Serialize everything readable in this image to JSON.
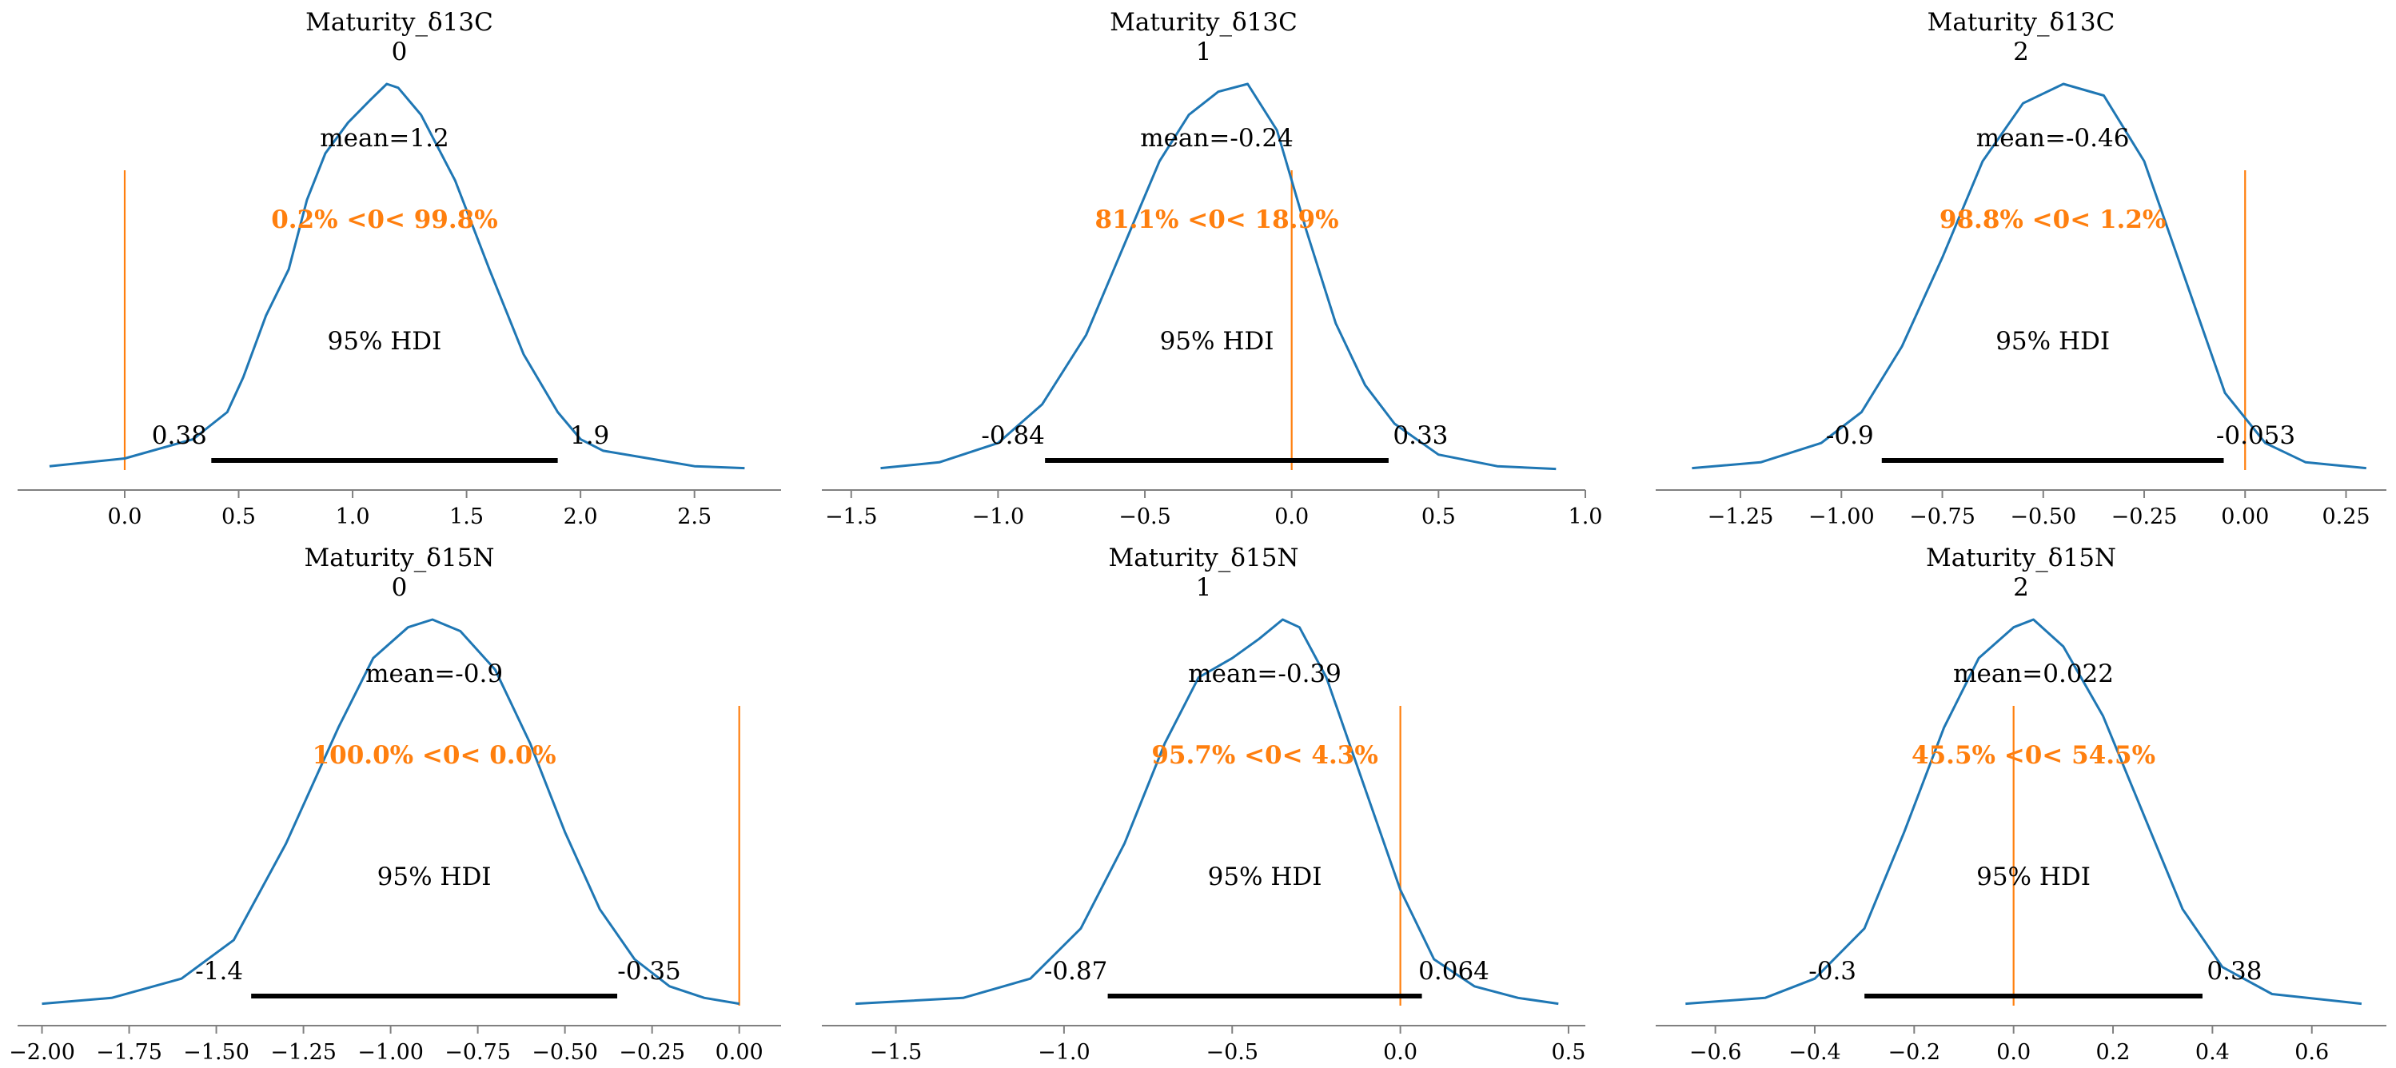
{
  "colors": {
    "kde": "#1f77b4",
    "ref": "#ff7f0e",
    "hdi": "#000000",
    "axis": "#808080"
  },
  "chart_data": [
    {
      "type": "area",
      "title": [
        "Maturity_δ13C",
        "0"
      ],
      "mean_label": "mean=1.2",
      "ref_val_label": "0.2% <0< 99.8%",
      "hdi_label": "95% HDI",
      "hdi": {
        "low": 0.38,
        "high": 1.9,
        "low_label": "0.38",
        "high_label": "1.9"
      },
      "ref_val": 0.0,
      "xlim": [
        -0.47,
        2.88
      ],
      "xticks": [
        0.0,
        0.5,
        1.0,
        1.5,
        2.0,
        2.5
      ],
      "xticklabels": [
        "0.0",
        "0.5",
        "1.0",
        "1.5",
        "2.0",
        "2.5"
      ],
      "kde": {
        "x": [
          -0.33,
          0.0,
          0.3,
          0.45,
          0.52,
          0.62,
          0.72,
          0.8,
          0.88,
          0.98,
          1.08,
          1.15,
          1.2,
          1.3,
          1.45,
          1.6,
          1.75,
          1.9,
          2.0,
          2.1,
          2.3,
          2.5,
          2.72
        ],
        "y": [
          0.01,
          0.03,
          0.08,
          0.15,
          0.24,
          0.4,
          0.52,
          0.7,
          0.82,
          0.9,
          0.96,
          1.0,
          0.99,
          0.92,
          0.75,
          0.52,
          0.3,
          0.15,
          0.08,
          0.05,
          0.03,
          0.01,
          0.005
        ]
      }
    },
    {
      "type": "area",
      "title": [
        "Maturity_δ13C",
        "1"
      ],
      "mean_label": "mean=-0.24",
      "ref_val_label": "81.1% <0< 18.9%",
      "hdi_label": "95% HDI",
      "hdi": {
        "low": -0.84,
        "high": 0.33,
        "low_label": "-0.84",
        "high_label": "0.33"
      },
      "ref_val": 0.0,
      "xlim": [
        -1.6,
        1.0
      ],
      "xticks": [
        -1.5,
        -1.0,
        -0.5,
        0.0,
        0.5,
        1.0
      ],
      "xticklabels": [
        "−1.5",
        "−1.0",
        "−0.5",
        "0.0",
        "0.5",
        "1.0"
      ],
      "kde": {
        "x": [
          -1.4,
          -1.2,
          -1.0,
          -0.85,
          -0.7,
          -0.55,
          -0.45,
          -0.35,
          -0.25,
          -0.15,
          -0.05,
          0.05,
          0.15,
          0.25,
          0.35,
          0.5,
          0.7,
          0.9
        ],
        "y": [
          0.005,
          0.02,
          0.07,
          0.17,
          0.35,
          0.62,
          0.8,
          0.92,
          0.98,
          1.0,
          0.88,
          0.62,
          0.38,
          0.22,
          0.12,
          0.04,
          0.01,
          0.003
        ]
      }
    },
    {
      "type": "area",
      "title": [
        "Maturity_δ13C",
        "2"
      ],
      "mean_label": "mean=-0.46",
      "ref_val_label": "98.8% <0< 1.2%",
      "hdi_label": "95% HDI",
      "hdi": {
        "low": -0.9,
        "high": -0.053,
        "low_label": "-0.9",
        "high_label": "-0.053"
      },
      "ref_val": 0.0,
      "xlim": [
        -1.46,
        0.35
      ],
      "xticks": [
        -1.25,
        -1.0,
        -0.75,
        -0.5,
        -0.25,
        0.0,
        0.25
      ],
      "xticklabels": [
        "−1.25",
        "−1.00",
        "−0.75",
        "−0.50",
        "−0.25",
        "0.00",
        "0.25"
      ],
      "kde": {
        "x": [
          -1.37,
          -1.2,
          -1.05,
          -0.95,
          -0.85,
          -0.75,
          -0.65,
          -0.55,
          -0.45,
          -0.35,
          -0.25,
          -0.15,
          -0.05,
          0.05,
          0.15,
          0.3
        ],
        "y": [
          0.005,
          0.02,
          0.07,
          0.15,
          0.32,
          0.55,
          0.8,
          0.95,
          1.0,
          0.97,
          0.8,
          0.5,
          0.2,
          0.07,
          0.02,
          0.005
        ]
      }
    },
    {
      "type": "area",
      "title": [
        "Maturity_δ15N",
        "0"
      ],
      "mean_label": "mean=-0.9",
      "ref_val_label": "100.0% <0< 0.0%",
      "hdi_label": "95% HDI",
      "hdi": {
        "low": -1.4,
        "high": -0.35,
        "low_label": "-1.4",
        "high_label": "-0.35"
      },
      "ref_val": 0.0,
      "xlim": [
        -2.07,
        0.12
      ],
      "xticks": [
        -2.0,
        -1.75,
        -1.5,
        -1.25,
        -1.0,
        -0.75,
        -0.5,
        -0.25,
        0.0
      ],
      "xticklabels": [
        "−2.00",
        "−1.75",
        "−1.50",
        "−1.25",
        "−1.00",
        "−0.75",
        "−0.50",
        "−0.25",
        "0.00"
      ],
      "kde": {
        "x": [
          -2.0,
          -1.8,
          -1.6,
          -1.45,
          -1.3,
          -1.15,
          -1.05,
          -0.95,
          -0.88,
          -0.8,
          -0.7,
          -0.6,
          -0.5,
          -0.4,
          -0.3,
          -0.2,
          -0.1,
          0.0
        ],
        "y": [
          0.005,
          0.02,
          0.07,
          0.17,
          0.42,
          0.72,
          0.9,
          0.98,
          1.0,
          0.97,
          0.87,
          0.68,
          0.45,
          0.25,
          0.12,
          0.05,
          0.02,
          0.005
        ]
      }
    },
    {
      "type": "area",
      "title": [
        "Maturity_δ15N",
        "1"
      ],
      "mean_label": "mean=-0.39",
      "ref_val_label": "95.7% <0< 4.3%",
      "hdi_label": "95% HDI",
      "hdi": {
        "low": -0.87,
        "high": 0.064,
        "low_label": "-0.87",
        "high_label": "0.064"
      },
      "ref_val": 0.0,
      "xlim": [
        -1.72,
        0.55
      ],
      "xticks": [
        -1.5,
        -1.0,
        -0.5,
        0.0,
        0.5
      ],
      "xticklabels": [
        "−1.5",
        "−1.0",
        "−0.5",
        "0.0",
        "0.5"
      ],
      "kde": {
        "x": [
          -1.62,
          -1.3,
          -1.1,
          -0.95,
          -0.82,
          -0.7,
          -0.6,
          -0.5,
          -0.42,
          -0.35,
          -0.3,
          -0.22,
          -0.12,
          0.0,
          0.1,
          0.22,
          0.35,
          0.47
        ],
        "y": [
          0.005,
          0.02,
          0.07,
          0.2,
          0.42,
          0.68,
          0.85,
          0.9,
          0.95,
          1.0,
          0.98,
          0.85,
          0.6,
          0.3,
          0.12,
          0.05,
          0.02,
          0.005
        ]
      }
    },
    {
      "type": "area",
      "title": [
        "Maturity_δ15N",
        "2"
      ],
      "mean_label": "mean=0.022",
      "ref_val_label": "45.5% <0< 54.5%",
      "hdi_label": "95% HDI",
      "hdi": {
        "low": -0.3,
        "high": 0.38,
        "low_label": "-0.3",
        "high_label": "0.38"
      },
      "ref_val": 0.0,
      "xlim": [
        -0.72,
        0.75
      ],
      "xticks": [
        -0.6,
        -0.4,
        -0.2,
        0.0,
        0.2,
        0.4,
        0.6
      ],
      "xticklabels": [
        "−0.6",
        "−0.4",
        "−0.2",
        "0.0",
        "0.2",
        "0.4",
        "0.6"
      ],
      "kde": {
        "x": [
          -0.66,
          -0.5,
          -0.4,
          -0.3,
          -0.22,
          -0.14,
          -0.07,
          0.0,
          0.04,
          0.1,
          0.18,
          0.26,
          0.34,
          0.42,
          0.52,
          0.7
        ],
        "y": [
          0.005,
          0.02,
          0.07,
          0.2,
          0.45,
          0.72,
          0.9,
          0.98,
          1.0,
          0.93,
          0.75,
          0.5,
          0.25,
          0.1,
          0.03,
          0.005
        ]
      }
    }
  ]
}
